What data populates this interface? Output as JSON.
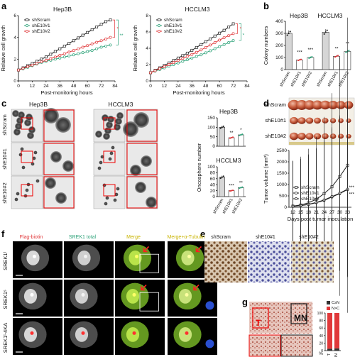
{
  "panel_letters": [
    "a",
    "b",
    "c",
    "d",
    "e",
    "f",
    "g"
  ],
  "colors": {
    "shScram": "#222222",
    "shE10_1": "#2ea37a",
    "shE10_2": "#e0383a"
  },
  "panels": {
    "a": {
      "left_title": "Hep3B",
      "right_title": "HCCLM3"
    },
    "b": {
      "title_left": "Hep3B",
      "title_right": "HCCLM3",
      "stars": [
        "***",
        "***",
        "**",
        "**"
      ]
    },
    "c": {
      "col_hep": "Hep3B",
      "col_hcc": "HCCLM3",
      "rows": [
        "shScram",
        "shE10#1",
        "shE10#2"
      ],
      "bar_top_title": "Hep3B",
      "bar_bottom_title": "HCCLM3",
      "ylabel": "Oncosphere number",
      "stars_top": [
        "**",
        "*"
      ],
      "stars_bottom": [
        "***",
        "**"
      ]
    },
    "d": {
      "rows": [
        "shScram",
        "shE10#1",
        "shE10#2"
      ],
      "stars": [
        "***",
        "***"
      ]
    },
    "e": {
      "labels": [
        "shScram",
        "shE10#1",
        "shE10#2"
      ]
    },
    "f": {
      "cols": [
        "Flag-biotin",
        "SREK1 total",
        "Merge",
        "Merge+α-Tubulin"
      ],
      "rows": [
        "SREK1ˡ",
        "SREK1ˢ",
        "SREK1ˡ-4KA"
      ]
    },
    "g": {
      "label_T": "T",
      "label_MN": "MN",
      "legend": [
        "C≥N",
        "N>C"
      ],
      "x": [
        "T",
        "MN"
      ],
      "pct": "%"
    }
  },
  "chart_data": [
    {
      "id": "a-left",
      "type": "line",
      "title": "Hep3B",
      "xlabel": "Post-monitoring hours",
      "ylabel": "Relative cell growth",
      "xlim": [
        0,
        84
      ],
      "ylim": [
        0,
        6
      ],
      "xticks": [
        0,
        12,
        24,
        36,
        48,
        60,
        72,
        84
      ],
      "yticks": [
        0,
        2,
        4,
        6
      ],
      "x": [
        0,
        4,
        8,
        12,
        16,
        20,
        24,
        28,
        32,
        36,
        40,
        44,
        48,
        52,
        56,
        60,
        64,
        68,
        72,
        76,
        80
      ],
      "series": [
        {
          "name": "shScram",
          "values": [
            1.0,
            1.2,
            1.4,
            1.6,
            1.8,
            2.0,
            2.2,
            2.45,
            2.7,
            2.95,
            3.2,
            3.45,
            3.7,
            3.95,
            4.2,
            4.45,
            4.7,
            4.95,
            5.2,
            5.45,
            5.6
          ]
        },
        {
          "name": "shE10#1",
          "values": [
            1.0,
            1.1,
            1.25,
            1.4,
            1.55,
            1.7,
            1.8,
            1.9,
            2.0,
            2.1,
            2.2,
            2.3,
            2.4,
            2.5,
            2.6,
            2.7,
            2.8,
            2.95,
            3.1,
            3.2,
            3.3
          ]
        },
        {
          "name": "shE10#2",
          "values": [
            1.0,
            1.15,
            1.3,
            1.45,
            1.6,
            1.75,
            1.9,
            2.05,
            2.2,
            2.35,
            2.5,
            2.65,
            2.8,
            2.95,
            3.1,
            3.25,
            3.4,
            3.55,
            3.7,
            3.85,
            4.0
          ]
        }
      ],
      "stars": [
        "*",
        "**"
      ]
    },
    {
      "id": "a-right",
      "type": "line",
      "title": "HCCLM3",
      "xlabel": "Post-monitoring hours",
      "ylabel": "Relative cell growth",
      "xlim": [
        0,
        84
      ],
      "ylim": [
        0,
        8
      ],
      "xticks": [
        0,
        12,
        24,
        36,
        48,
        60,
        72,
        84
      ],
      "yticks": [
        0,
        2,
        4,
        6,
        8
      ],
      "x": [
        0,
        4,
        8,
        12,
        16,
        20,
        24,
        28,
        32,
        36,
        40,
        44,
        48,
        52,
        56,
        60,
        64,
        68,
        72
      ],
      "series": [
        {
          "name": "shScram",
          "values": [
            1.0,
            1.3,
            1.6,
            1.9,
            2.2,
            2.5,
            2.8,
            3.1,
            3.4,
            3.75,
            4.1,
            4.45,
            4.8,
            5.15,
            5.5,
            5.85,
            6.2,
            6.6,
            7.0
          ]
        },
        {
          "name": "shE10#1",
          "values": [
            1.0,
            1.2,
            1.4,
            1.6,
            1.8,
            2.0,
            2.2,
            2.4,
            2.6,
            2.8,
            3.0,
            3.2,
            3.45,
            3.7,
            3.95,
            4.2,
            4.45,
            4.7,
            4.95
          ]
        },
        {
          "name": "shE10#2",
          "values": [
            1.0,
            1.25,
            1.5,
            1.75,
            2.0,
            2.25,
            2.5,
            2.75,
            3.0,
            3.25,
            3.5,
            3.8,
            4.1,
            4.4,
            4.7,
            5.0,
            5.3,
            5.55,
            5.8
          ]
        }
      ],
      "stars": [
        "*",
        "*"
      ]
    },
    {
      "id": "b",
      "type": "bar",
      "ylabel": "Colony numbers",
      "ylim": [
        0,
        400
      ],
      "yticks": [
        0,
        100,
        200,
        300,
        400
      ],
      "categories": [
        "shScram",
        "shE10#1",
        "shE10#2",
        "shScram",
        "shE10#1",
        "shE10#2"
      ],
      "values": [
        300,
        80,
        100,
        310,
        110,
        150
      ]
    },
    {
      "id": "c-top",
      "type": "bar",
      "title": "Hep3B",
      "ylim": [
        0,
        150
      ],
      "yticks": [
        0,
        50,
        100,
        150
      ],
      "categories": [
        "shScram",
        "shE10#1",
        "shE10#2"
      ],
      "values": [
        100,
        45,
        60
      ]
    },
    {
      "id": "c-bottom",
      "type": "bar",
      "title": "HCCLM3",
      "ylim": [
        0,
        100
      ],
      "yticks": [
        0,
        20,
        40,
        60,
        80,
        100
      ],
      "categories": [
        "shScram",
        "shE10#1",
        "shE10#2"
      ],
      "values": [
        65,
        20,
        30
      ]
    },
    {
      "id": "d",
      "type": "line",
      "xlabel": "Days post tumor inoculation",
      "ylabel": "Tumor volume (mm³)",
      "ylim": [
        0,
        2500
      ],
      "yticks": [
        0,
        500,
        1000,
        1500,
        2000,
        2500
      ],
      "x": [
        12,
        15,
        18,
        21,
        24,
        27,
        30,
        33
      ],
      "series": [
        {
          "name": "shScram",
          "values": [
            50,
            100,
            200,
            350,
            600,
            900,
            1350,
            1850
          ]
        },
        {
          "name": "shE10#1",
          "values": [
            40,
            70,
            120,
            200,
            300,
            450,
            600,
            780
          ]
        },
        {
          "name": "shE10#2",
          "values": [
            45,
            75,
            130,
            210,
            320,
            470,
            620,
            800
          ]
        }
      ]
    },
    {
      "id": "g",
      "type": "bar",
      "ylim": [
        0,
        100
      ],
      "yticks": [
        0,
        20,
        40,
        60,
        80,
        100
      ],
      "categories": [
        "T",
        "MN"
      ],
      "series": [
        {
          "name": "C≥N",
          "values": [
            5,
            6
          ]
        },
        {
          "name": "N>C",
          "values": [
            95,
            94
          ]
        }
      ]
    }
  ]
}
